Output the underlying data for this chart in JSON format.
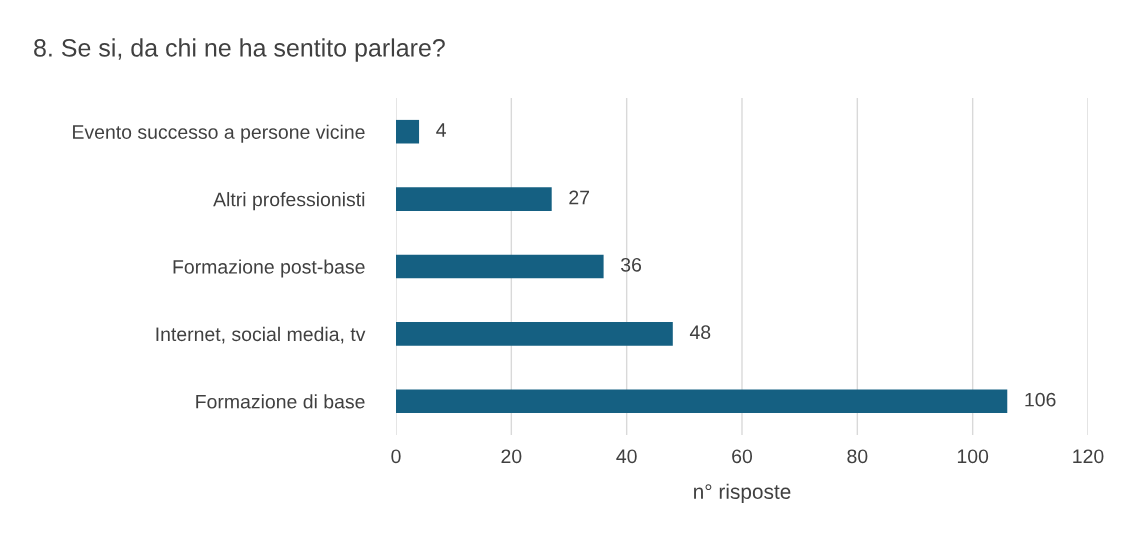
{
  "chart_data": {
    "type": "bar",
    "orientation": "horizontal",
    "title": "8. Se si, da chi ne ha sentito parlare?",
    "xlabel": "n° risposte",
    "categories": [
      "Evento successo a persone vicine",
      "Altri professionisti",
      "Formazione post-base",
      "Internet, social media, tv",
      "Formazione di base"
    ],
    "values": [
      4,
      27,
      36,
      48,
      106
    ],
    "color": "#156082",
    "xlim": [
      0,
      120
    ],
    "xticks": [
      0,
      20,
      40,
      60,
      80,
      100,
      120
    ],
    "grid": "x",
    "data_labels": true,
    "legend": false
  }
}
